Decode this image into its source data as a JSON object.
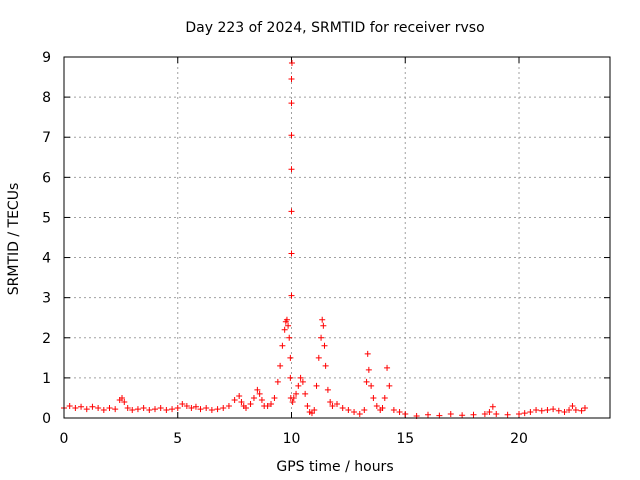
{
  "chart_data": {
    "type": "scatter",
    "title": "Day 223 of 2024, SRMTID for receiver rvso",
    "xlabel": "GPS time / hours",
    "ylabel": "SRMTID / TECUs",
    "xlim": [
      0,
      24
    ],
    "ylim": [
      0,
      9
    ],
    "x_ticks": [
      0,
      5,
      10,
      15,
      20
    ],
    "y_ticks": [
      0,
      1,
      2,
      3,
      4,
      5,
      6,
      7,
      8,
      9
    ],
    "grid": true,
    "marker": "+",
    "series": [
      {
        "color": "#ff0000",
        "x": [
          0.0,
          0.25,
          0.5,
          0.75,
          1.0,
          1.25,
          1.5,
          1.75,
          2.0,
          2.25,
          2.45,
          2.55,
          2.65,
          2.8,
          3.0,
          3.25,
          3.5,
          3.75,
          4.0,
          4.25,
          4.5,
          4.75,
          5.0,
          5.2,
          5.4,
          5.6,
          5.8,
          6.0,
          6.25,
          6.5,
          6.75,
          7.0,
          7.25,
          7.5,
          7.7,
          7.8,
          7.9,
          8.0,
          8.2,
          8.35,
          8.5,
          8.6,
          8.7,
          8.8,
          8.95,
          9.1,
          9.25,
          9.4,
          9.5,
          9.6,
          9.7,
          9.75,
          9.8,
          9.85,
          9.9,
          9.95,
          9.95,
          9.97,
          10.0,
          10.0,
          10.0,
          10.0,
          10.0,
          10.0,
          10.0,
          10.02,
          10.05,
          10.1,
          10.2,
          10.3,
          10.4,
          10.5,
          10.6,
          10.7,
          10.8,
          10.9,
          11.0,
          11.1,
          11.2,
          11.3,
          11.35,
          11.4,
          11.45,
          11.5,
          11.6,
          11.7,
          11.8,
          12.0,
          12.25,
          12.5,
          12.75,
          13.0,
          13.2,
          13.3,
          13.35,
          13.4,
          13.5,
          13.6,
          13.75,
          13.9,
          14.0,
          14.1,
          14.2,
          14.3,
          14.5,
          14.75,
          15.0,
          15.5,
          16.0,
          16.5,
          17.0,
          17.5,
          18.0,
          18.5,
          18.7,
          18.85,
          19.0,
          19.5,
          20.0,
          20.25,
          20.5,
          20.75,
          21.0,
          21.25,
          21.5,
          21.75,
          22.0,
          22.2,
          22.35,
          22.5,
          22.75,
          22.9
        ],
        "y": [
          0.25,
          0.3,
          0.25,
          0.28,
          0.22,
          0.28,
          0.25,
          0.2,
          0.25,
          0.22,
          0.45,
          0.5,
          0.4,
          0.25,
          0.2,
          0.22,
          0.25,
          0.2,
          0.22,
          0.25,
          0.2,
          0.22,
          0.25,
          0.35,
          0.3,
          0.25,
          0.28,
          0.22,
          0.25,
          0.2,
          0.22,
          0.25,
          0.3,
          0.45,
          0.55,
          0.4,
          0.3,
          0.25,
          0.35,
          0.5,
          0.7,
          0.6,
          0.45,
          0.3,
          0.3,
          0.35,
          0.5,
          0.9,
          1.3,
          1.8,
          2.2,
          2.4,
          2.45,
          2.3,
          2.0,
          1.5,
          1.0,
          0.5,
          3.05,
          4.1,
          5.15,
          6.2,
          7.05,
          7.85,
          8.45,
          8.85,
          0.4,
          0.5,
          0.6,
          0.8,
          1.0,
          0.9,
          0.6,
          0.3,
          0.15,
          0.12,
          0.2,
          0.8,
          1.5,
          2.0,
          2.45,
          2.3,
          1.8,
          1.3,
          0.7,
          0.4,
          0.3,
          0.35,
          0.25,
          0.2,
          0.15,
          0.1,
          0.2,
          0.9,
          1.6,
          1.2,
          0.8,
          0.5,
          0.3,
          0.2,
          0.25,
          0.5,
          1.25,
          0.8,
          0.2,
          0.15,
          0.1,
          0.05,
          0.08,
          0.06,
          0.1,
          0.07,
          0.08,
          0.1,
          0.15,
          0.28,
          0.1,
          0.08,
          0.1,
          0.12,
          0.15,
          0.2,
          0.18,
          0.2,
          0.22,
          0.18,
          0.15,
          0.2,
          0.3,
          0.2,
          0.18,
          0.25
        ]
      }
    ]
  }
}
